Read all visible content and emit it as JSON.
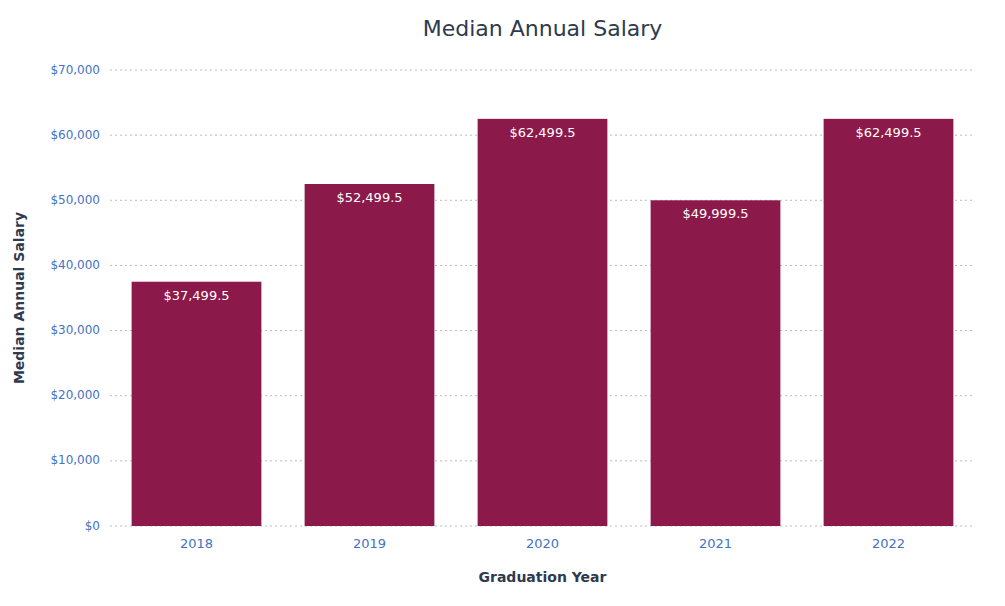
{
  "chart_data": {
    "type": "bar",
    "title": "Median Annual Salary",
    "xlabel": "Graduation Year",
    "ylabel": "Median Annual Salary",
    "categories": [
      "2018",
      "2019",
      "2020",
      "2021",
      "2022"
    ],
    "values": [
      37499.5,
      52499.5,
      62499.5,
      49999.5,
      62499.5
    ],
    "value_labels": [
      "$37,499.5",
      "$52,499.5",
      "$62,499.5",
      "$49,999.5",
      "$62,499.5"
    ],
    "data_labels": true,
    "color": "#8B1A4A",
    "ylim": [
      0,
      70000
    ],
    "yticks": [
      {
        "value": 0,
        "label": "$0"
      },
      {
        "value": 10000,
        "label": "$10,000"
      },
      {
        "value": 20000,
        "label": "$20,000"
      },
      {
        "value": 30000,
        "label": "$30,000"
      },
      {
        "value": 40000,
        "label": "$40,000"
      },
      {
        "value": 50000,
        "label": "$50,000"
      },
      {
        "value": 60000,
        "label": "$60,000"
      },
      {
        "value": 70000,
        "label": "$70,000"
      }
    ],
    "grid": true
  }
}
